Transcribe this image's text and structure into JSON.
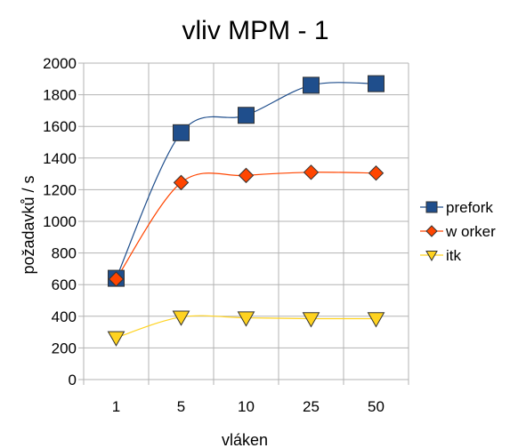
{
  "chart_data": {
    "type": "line",
    "title": "vliv MPM - 1",
    "xlabel": "vláken",
    "ylabel": "požadavků / s",
    "categories": [
      "1",
      "5",
      "10",
      "25",
      "50"
    ],
    "ylim": [
      0,
      2000
    ],
    "ytick_step": 200,
    "grid": "both",
    "legend_position": "right",
    "series": [
      {
        "name": "prefork",
        "values": [
          640,
          1560,
          1670,
          1860,
          1870
        ],
        "color": "#1f4e8c",
        "marker": "square"
      },
      {
        "name": "w orker",
        "values": [
          635,
          1245,
          1290,
          1310,
          1305
        ],
        "color": "#ff4500",
        "marker": "diamond"
      },
      {
        "name": "itk",
        "values": [
          265,
          395,
          390,
          385,
          385
        ],
        "color": "#ffd320",
        "marker": "triangle-down"
      }
    ]
  }
}
